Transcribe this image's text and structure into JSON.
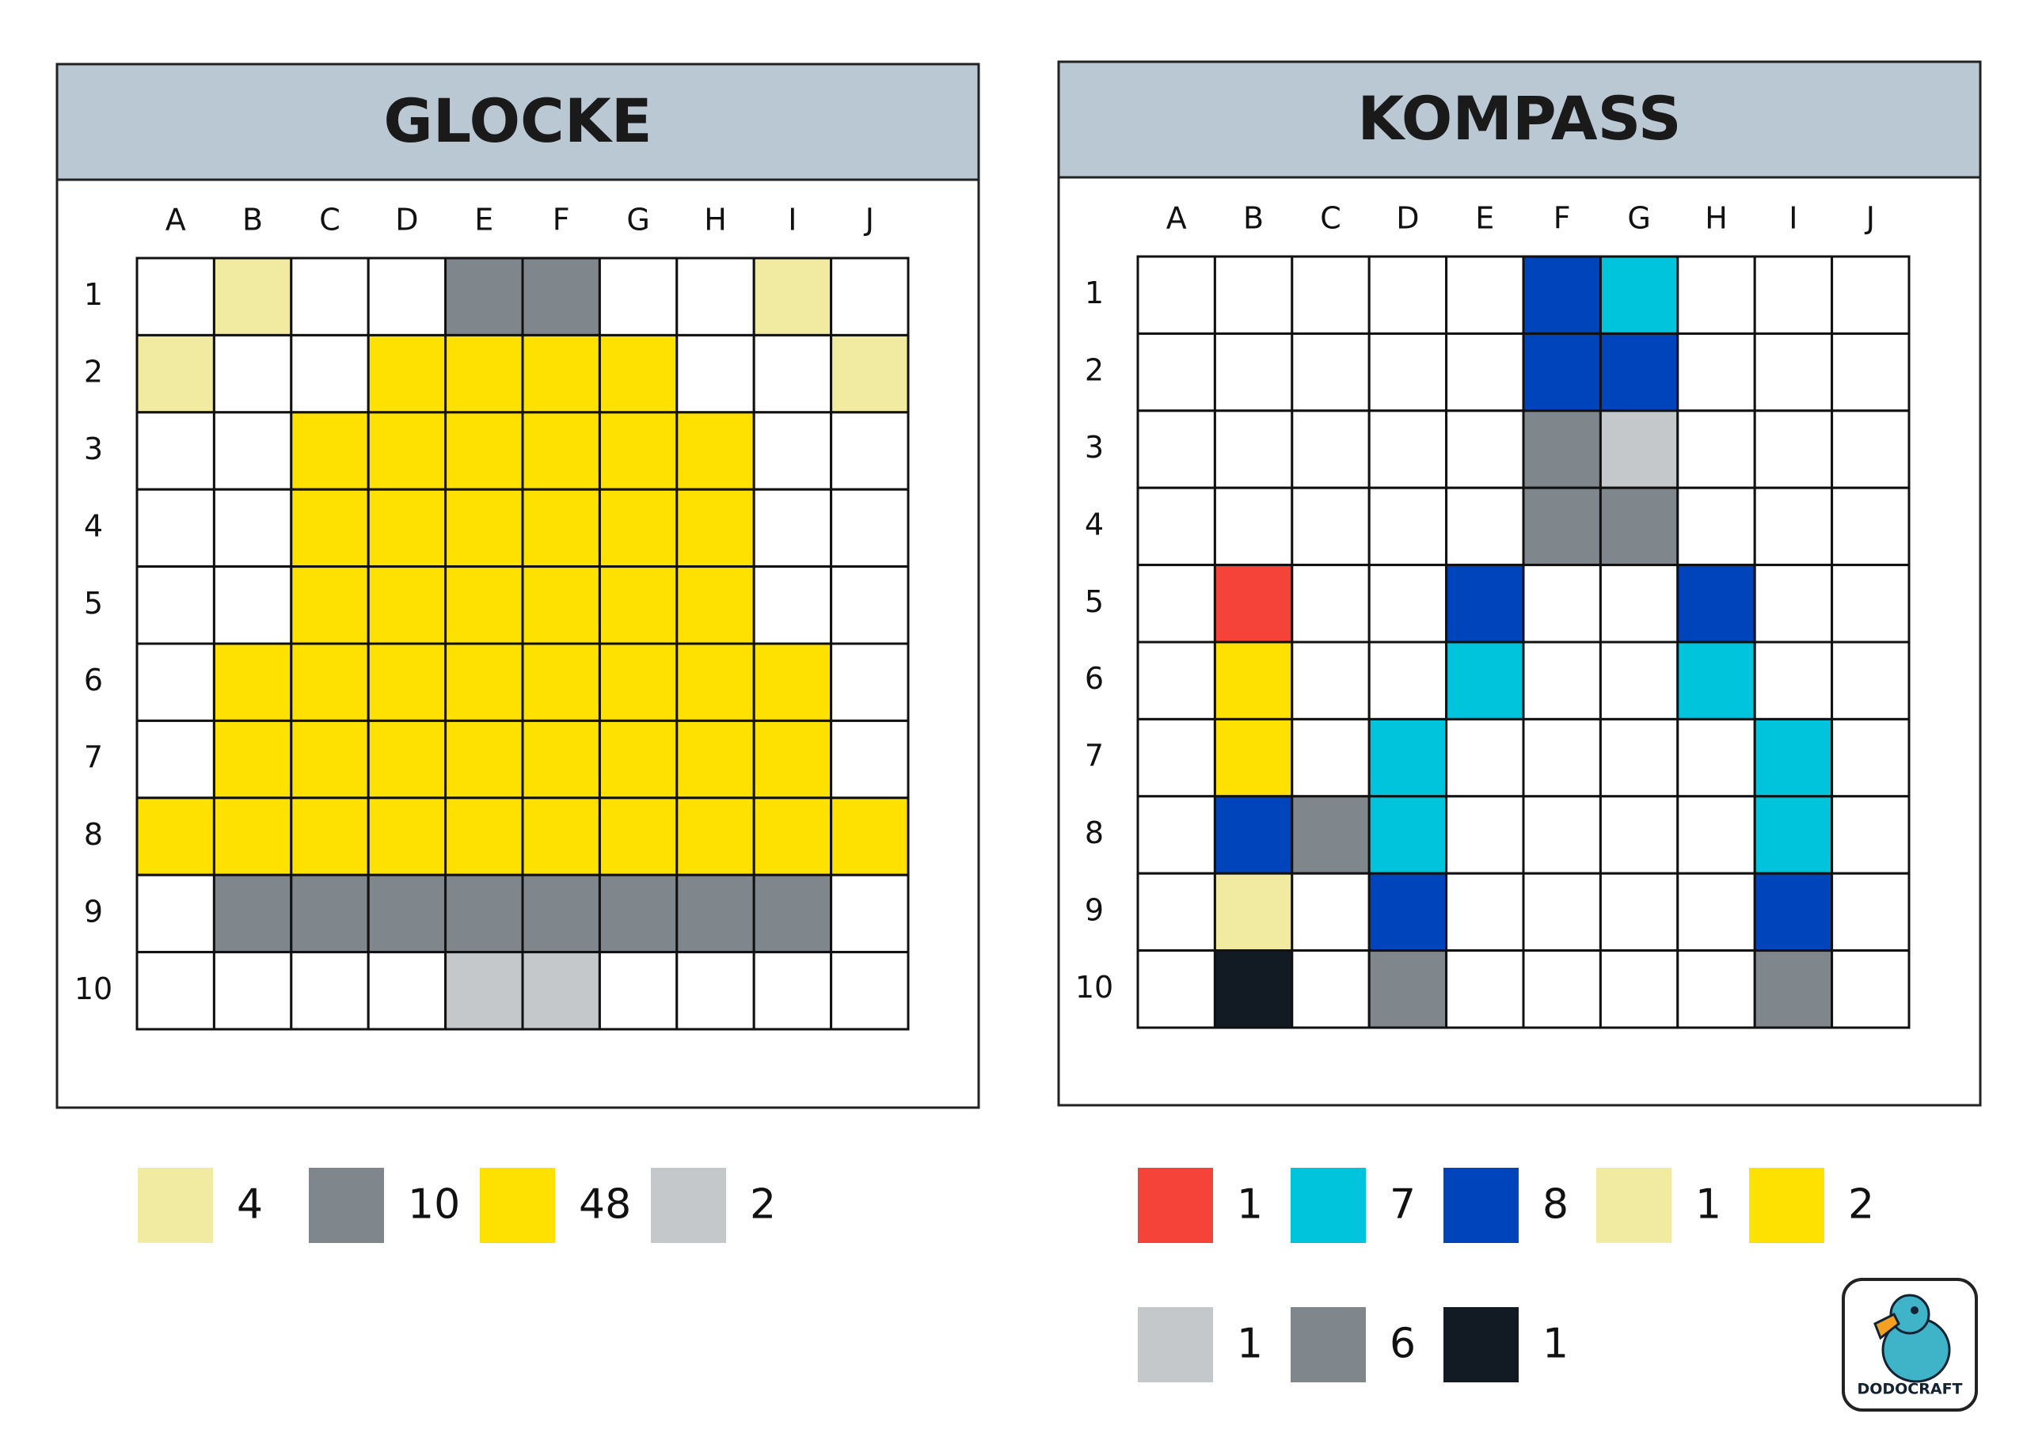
{
  "panels": [
    {
      "title": "GLOCKE",
      "columns": [
        "A",
        "B",
        "C",
        "D",
        "E",
        "F",
        "G",
        "H",
        "I",
        "J"
      ],
      "rows": [
        "1",
        "2",
        "3",
        "4",
        "5",
        "6",
        "7",
        "8",
        "9",
        "10"
      ],
      "grid": [
        [
          null,
          "#f0eba0",
          null,
          null,
          "#7f878d",
          "#7f878d",
          null,
          null,
          "#f0eba0",
          null
        ],
        [
          "#f0eba0",
          null,
          null,
          "#ffe100",
          "#ffe100",
          "#ffe100",
          "#ffe100",
          null,
          null,
          "#f0eba0"
        ],
        [
          null,
          null,
          "#ffe100",
          "#ffe100",
          "#ffe100",
          "#ffe100",
          "#ffe100",
          "#ffe100",
          null,
          null
        ],
        [
          null,
          null,
          "#ffe100",
          "#ffe100",
          "#ffe100",
          "#ffe100",
          "#ffe100",
          "#ffe100",
          null,
          null
        ],
        [
          null,
          null,
          "#ffe100",
          "#ffe100",
          "#ffe100",
          "#ffe100",
          "#ffe100",
          "#ffe100",
          null,
          null
        ],
        [
          null,
          "#ffe100",
          "#ffe100",
          "#ffe100",
          "#ffe100",
          "#ffe100",
          "#ffe100",
          "#ffe100",
          "#ffe100",
          null
        ],
        [
          null,
          "#ffe100",
          "#ffe100",
          "#ffe100",
          "#ffe100",
          "#ffe100",
          "#ffe100",
          "#ffe100",
          "#ffe100",
          null
        ],
        [
          "#ffe100",
          "#ffe100",
          "#ffe100",
          "#ffe100",
          "#ffe100",
          "#ffe100",
          "#ffe100",
          "#ffe100",
          "#ffe100",
          "#ffe100"
        ],
        [
          null,
          "#7f878d",
          "#7f878d",
          "#7f878d",
          "#7f878d",
          "#7f878d",
          "#7f878d",
          "#7f878d",
          "#7f878d",
          null
        ],
        [
          null,
          null,
          null,
          null,
          "#c4c8cb",
          "#c4c8cb",
          null,
          null,
          null,
          null
        ]
      ],
      "legend": [
        {
          "color": "#f0eba0",
          "count": 4
        },
        {
          "color": "#7f878d",
          "count": 10
        },
        {
          "color": "#ffe100",
          "count": 48
        },
        {
          "color": "#c4c8cb",
          "count": 2
        }
      ]
    },
    {
      "title": "KOMPASS",
      "columns": [
        "A",
        "B",
        "C",
        "D",
        "E",
        "F",
        "G",
        "H",
        "I",
        "J"
      ],
      "rows": [
        "1",
        "2",
        "3",
        "4",
        "5",
        "6",
        "7",
        "8",
        "9",
        "10"
      ],
      "grid": [
        [
          null,
          null,
          null,
          null,
          null,
          "#0044bb",
          "#00c3dc",
          null,
          null,
          null
        ],
        [
          null,
          null,
          null,
          null,
          null,
          "#0044bb",
          "#0044bb",
          null,
          null,
          null
        ],
        [
          null,
          null,
          null,
          null,
          null,
          "#7f878d",
          "#c4c8cb",
          null,
          null,
          null
        ],
        [
          null,
          null,
          null,
          null,
          null,
          "#7f878d",
          "#7f878d",
          null,
          null,
          null
        ],
        [
          null,
          "#f5433a",
          null,
          null,
          "#0044bb",
          null,
          null,
          "#0044bb",
          null,
          null
        ],
        [
          null,
          "#ffe100",
          null,
          null,
          "#00c3dc",
          null,
          null,
          "#00c3dc",
          null,
          null
        ],
        [
          null,
          "#ffe100",
          null,
          "#00c3dc",
          null,
          null,
          null,
          null,
          "#00c3dc",
          null
        ],
        [
          null,
          "#0044bb",
          "#7f878d",
          "#00c3dc",
          null,
          null,
          null,
          null,
          "#00c3dc",
          null
        ],
        [
          null,
          "#f0eba0",
          null,
          "#0044bb",
          null,
          null,
          null,
          null,
          "#0044bb",
          null
        ],
        [
          null,
          "#121a23",
          null,
          "#7f878d",
          null,
          null,
          null,
          null,
          "#7f878d",
          null
        ]
      ],
      "legend": [
        {
          "color": "#f5433a",
          "count": 1
        },
        {
          "color": "#00c3dc",
          "count": 7
        },
        {
          "color": "#0044bb",
          "count": 8
        },
        {
          "color": "#f0eba0",
          "count": 1
        },
        {
          "color": "#ffe100",
          "count": 2
        },
        {
          "color": "#c4c8cb",
          "count": 1
        },
        {
          "color": "#7f878d",
          "count": 6
        },
        {
          "color": "#121a23",
          "count": 1
        }
      ]
    }
  ],
  "logo": {
    "text": "DODOCRAFT"
  }
}
